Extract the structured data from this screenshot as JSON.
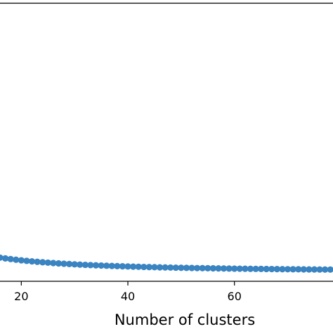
{
  "chart_data": {
    "type": "scatter",
    "title": "",
    "xlabel": "Number of clusters",
    "ylabel": "",
    "xlim": [
      16,
      78.5
    ],
    "ylim": [
      0,
      100
    ],
    "xticks": [
      20,
      40,
      60
    ],
    "tick_labels": [
      "20",
      "40",
      "60"
    ],
    "grid": false,
    "marker_color": "#3a84c2",
    "series": [
      {
        "x": [
          16,
          17,
          18,
          19,
          20,
          21,
          22,
          23,
          24,
          25,
          26,
          27,
          28,
          29,
          30,
          31,
          32,
          33,
          34,
          35,
          36,
          37,
          38,
          39,
          40,
          41,
          42,
          43,
          44,
          45,
          46,
          47,
          48,
          49,
          50,
          51,
          52,
          53,
          54,
          55,
          56,
          57,
          58,
          59,
          60,
          61,
          62,
          63,
          64,
          65,
          66,
          67,
          68,
          69,
          70,
          71,
          72,
          73,
          74,
          75,
          76,
          77,
          78
        ],
        "y": [
          8.5,
          8.23,
          7.99,
          7.76,
          7.55,
          7.35,
          7.17,
          7.0,
          6.85,
          6.7,
          6.56,
          6.44,
          6.32,
          6.21,
          6.1,
          6.0,
          5.91,
          5.82,
          5.74,
          5.66,
          5.59,
          5.52,
          5.45,
          5.39,
          5.33,
          5.27,
          5.22,
          5.16,
          5.11,
          5.07,
          5.02,
          4.98,
          4.94,
          4.9,
          4.86,
          4.82,
          4.79,
          4.75,
          4.72,
          4.69,
          4.66,
          4.63,
          4.6,
          4.58,
          4.55,
          4.53,
          4.5,
          4.48,
          4.46,
          4.44,
          4.42,
          4.4,
          4.38,
          4.36,
          4.34,
          4.32,
          4.31,
          4.29,
          4.27,
          4.26,
          4.24,
          4.23,
          4.21
        ]
      }
    ]
  }
}
